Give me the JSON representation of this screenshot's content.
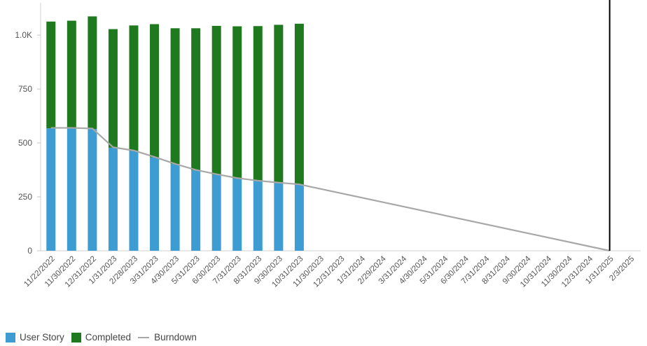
{
  "chart_data": {
    "type": "bar",
    "title": "",
    "xlabel": "",
    "ylabel": "",
    "ylim": [
      0,
      1150
    ],
    "y_ticks": [
      {
        "value": 0,
        "label": "0"
      },
      {
        "value": 250,
        "label": "250"
      },
      {
        "value": 500,
        "label": "500"
      },
      {
        "value": 750,
        "label": "750"
      },
      {
        "value": 1000,
        "label": "1.0K"
      }
    ],
    "categories": [
      "11/22/2022",
      "11/30/2022",
      "12/31/2022",
      "1/31/2023",
      "2/28/2023",
      "3/31/2023",
      "4/30/2023",
      "5/31/2023",
      "6/30/2023",
      "7/31/2023",
      "8/31/2023",
      "9/30/2023",
      "10/31/2023",
      "11/30/2023",
      "12/31/2023",
      "1/31/2024",
      "2/29/2024",
      "3/31/2024",
      "4/30/2024",
      "5/31/2024",
      "6/30/2024",
      "7/31/2024",
      "8/31/2024",
      "9/30/2024",
      "10/31/2024",
      "11/30/2024",
      "12/31/2024",
      "1/31/2025",
      "2/3/2025"
    ],
    "series": [
      {
        "name": "User Story",
        "color": "#3d9cd2",
        "kind": "stacked-bar",
        "values": [
          568,
          570,
          565,
          478,
          463,
          433,
          402,
          373,
          353,
          335,
          323,
          314,
          306,
          null,
          null,
          null,
          null,
          null,
          null,
          null,
          null,
          null,
          null,
          null,
          null,
          null,
          null,
          null,
          null
        ]
      },
      {
        "name": "Completed",
        "color": "#1f7a1f",
        "kind": "stacked-bar",
        "values": [
          495,
          497,
          522,
          550,
          582,
          618,
          630,
          659,
          690,
          706,
          719,
          734,
          747,
          null,
          null,
          null,
          null,
          null,
          null,
          null,
          null,
          null,
          null,
          null,
          null,
          null,
          null,
          null,
          null
        ]
      },
      {
        "name": "Burndown",
        "color": "#a8a8a8",
        "kind": "line",
        "values": [
          570,
          570,
          567,
          480,
          465,
          435,
          403,
          375,
          355,
          337,
          325,
          316,
          308,
          null,
          null,
          null,
          null,
          null,
          null,
          null,
          null,
          null,
          null,
          null,
          null,
          null,
          null,
          0,
          null
        ]
      }
    ],
    "reference_line": {
      "category": "1/31/2025",
      "color": "#000000"
    },
    "legend": "bottom-left",
    "grid": false
  }
}
